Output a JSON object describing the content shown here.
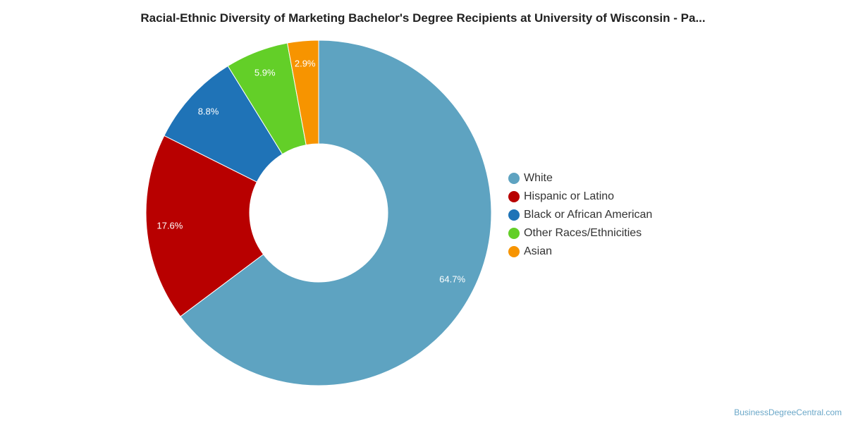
{
  "title": "Racial-Ethnic Diversity of Marketing Bachelor's Degree Recipients at University of Wisconsin - Pa...",
  "credit": "BusinessDegreeCentral.com",
  "chart_data": {
    "type": "pie",
    "donut": true,
    "title": "Racial-Ethnic Diversity of Marketing Bachelor's Degree Recipients at University of Wisconsin - Pa...",
    "legend_position": "right",
    "slices": [
      {
        "name": "White",
        "value": 64.7,
        "label": "64.7%",
        "color": "#5ea3c1"
      },
      {
        "name": "Hispanic or Latino",
        "value": 17.6,
        "label": "17.6%",
        "color": "#b80000"
      },
      {
        "name": "Black or African American",
        "value": 8.8,
        "label": "8.8%",
        "color": "#1f73b7"
      },
      {
        "name": "Other Races/Ethnicities",
        "value": 5.9,
        "label": "5.9%",
        "color": "#63cf28"
      },
      {
        "name": "Asian",
        "value": 2.9,
        "label": "2.9%",
        "color": "#f79400"
      }
    ]
  }
}
